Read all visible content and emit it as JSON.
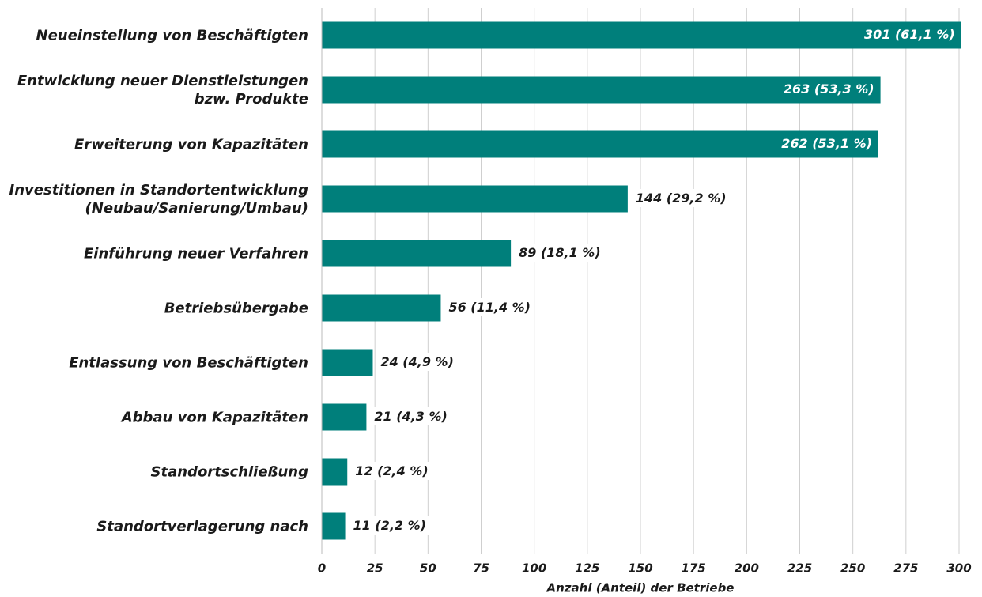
{
  "chart_data": {
    "type": "barh",
    "x_label": "Anzahl (Anteil) der Betriebe",
    "categories": [
      "Neueinstellung von Beschäftigten",
      "Entwicklung neuer Dienstleistungen\nbzw. Produkte",
      "Erweiterung von Kapazitäten",
      "Investitionen in Standortentwicklung\n(Neubau/Sanierung/Umbau)",
      "Einführung neuer Verfahren",
      "Betriebsübergabe",
      "Entlassung von Beschäftigten",
      "Abbau von Kapazitäten",
      "Standortschließung",
      "Standortverlagerung nach"
    ],
    "values": [
      301,
      263,
      262,
      144,
      89,
      56,
      24,
      21,
      12,
      11
    ],
    "value_labels": [
      "301 (61,1 %)",
      "263 (53,3 %)",
      "262 (53,1 %)",
      "144 (29,2 %)",
      "89 (18,1 %)",
      "56 (11,4 %)",
      "24 (4,9 %)",
      "21 (4,3 %)",
      "12 (2,4 %)",
      "11 (2,2 %)"
    ],
    "color": "#007f7b",
    "xlim": [
      0,
      300
    ],
    "xticks": [
      0,
      25,
      50,
      75,
      100,
      125,
      150,
      175,
      200,
      225,
      250,
      275,
      300
    ],
    "grid": true
  }
}
